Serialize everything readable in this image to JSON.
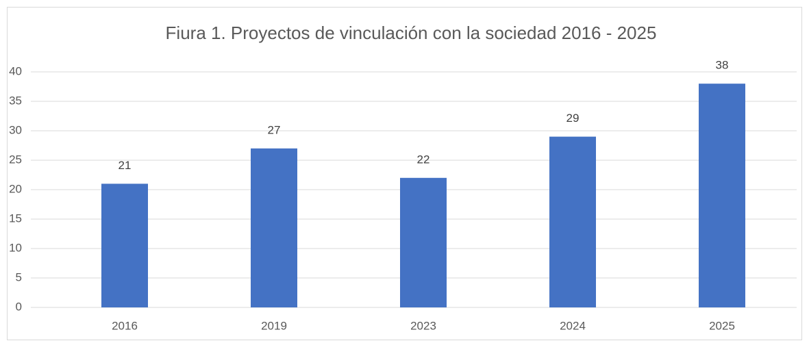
{
  "chart_data": {
    "type": "bar",
    "title": "Fiura 1. Proyectos de vinculación con la sociedad 2016 - 2025",
    "categories": [
      "2016",
      "2019",
      "2023",
      "2024",
      "2025"
    ],
    "values": [
      21,
      27,
      22,
      29,
      38
    ],
    "color": "#4472c4",
    "ylim": [
      0,
      40
    ],
    "yticks": [
      0,
      5,
      10,
      15,
      20,
      25,
      30,
      35,
      40
    ],
    "grid": true,
    "data_labels": true
  }
}
